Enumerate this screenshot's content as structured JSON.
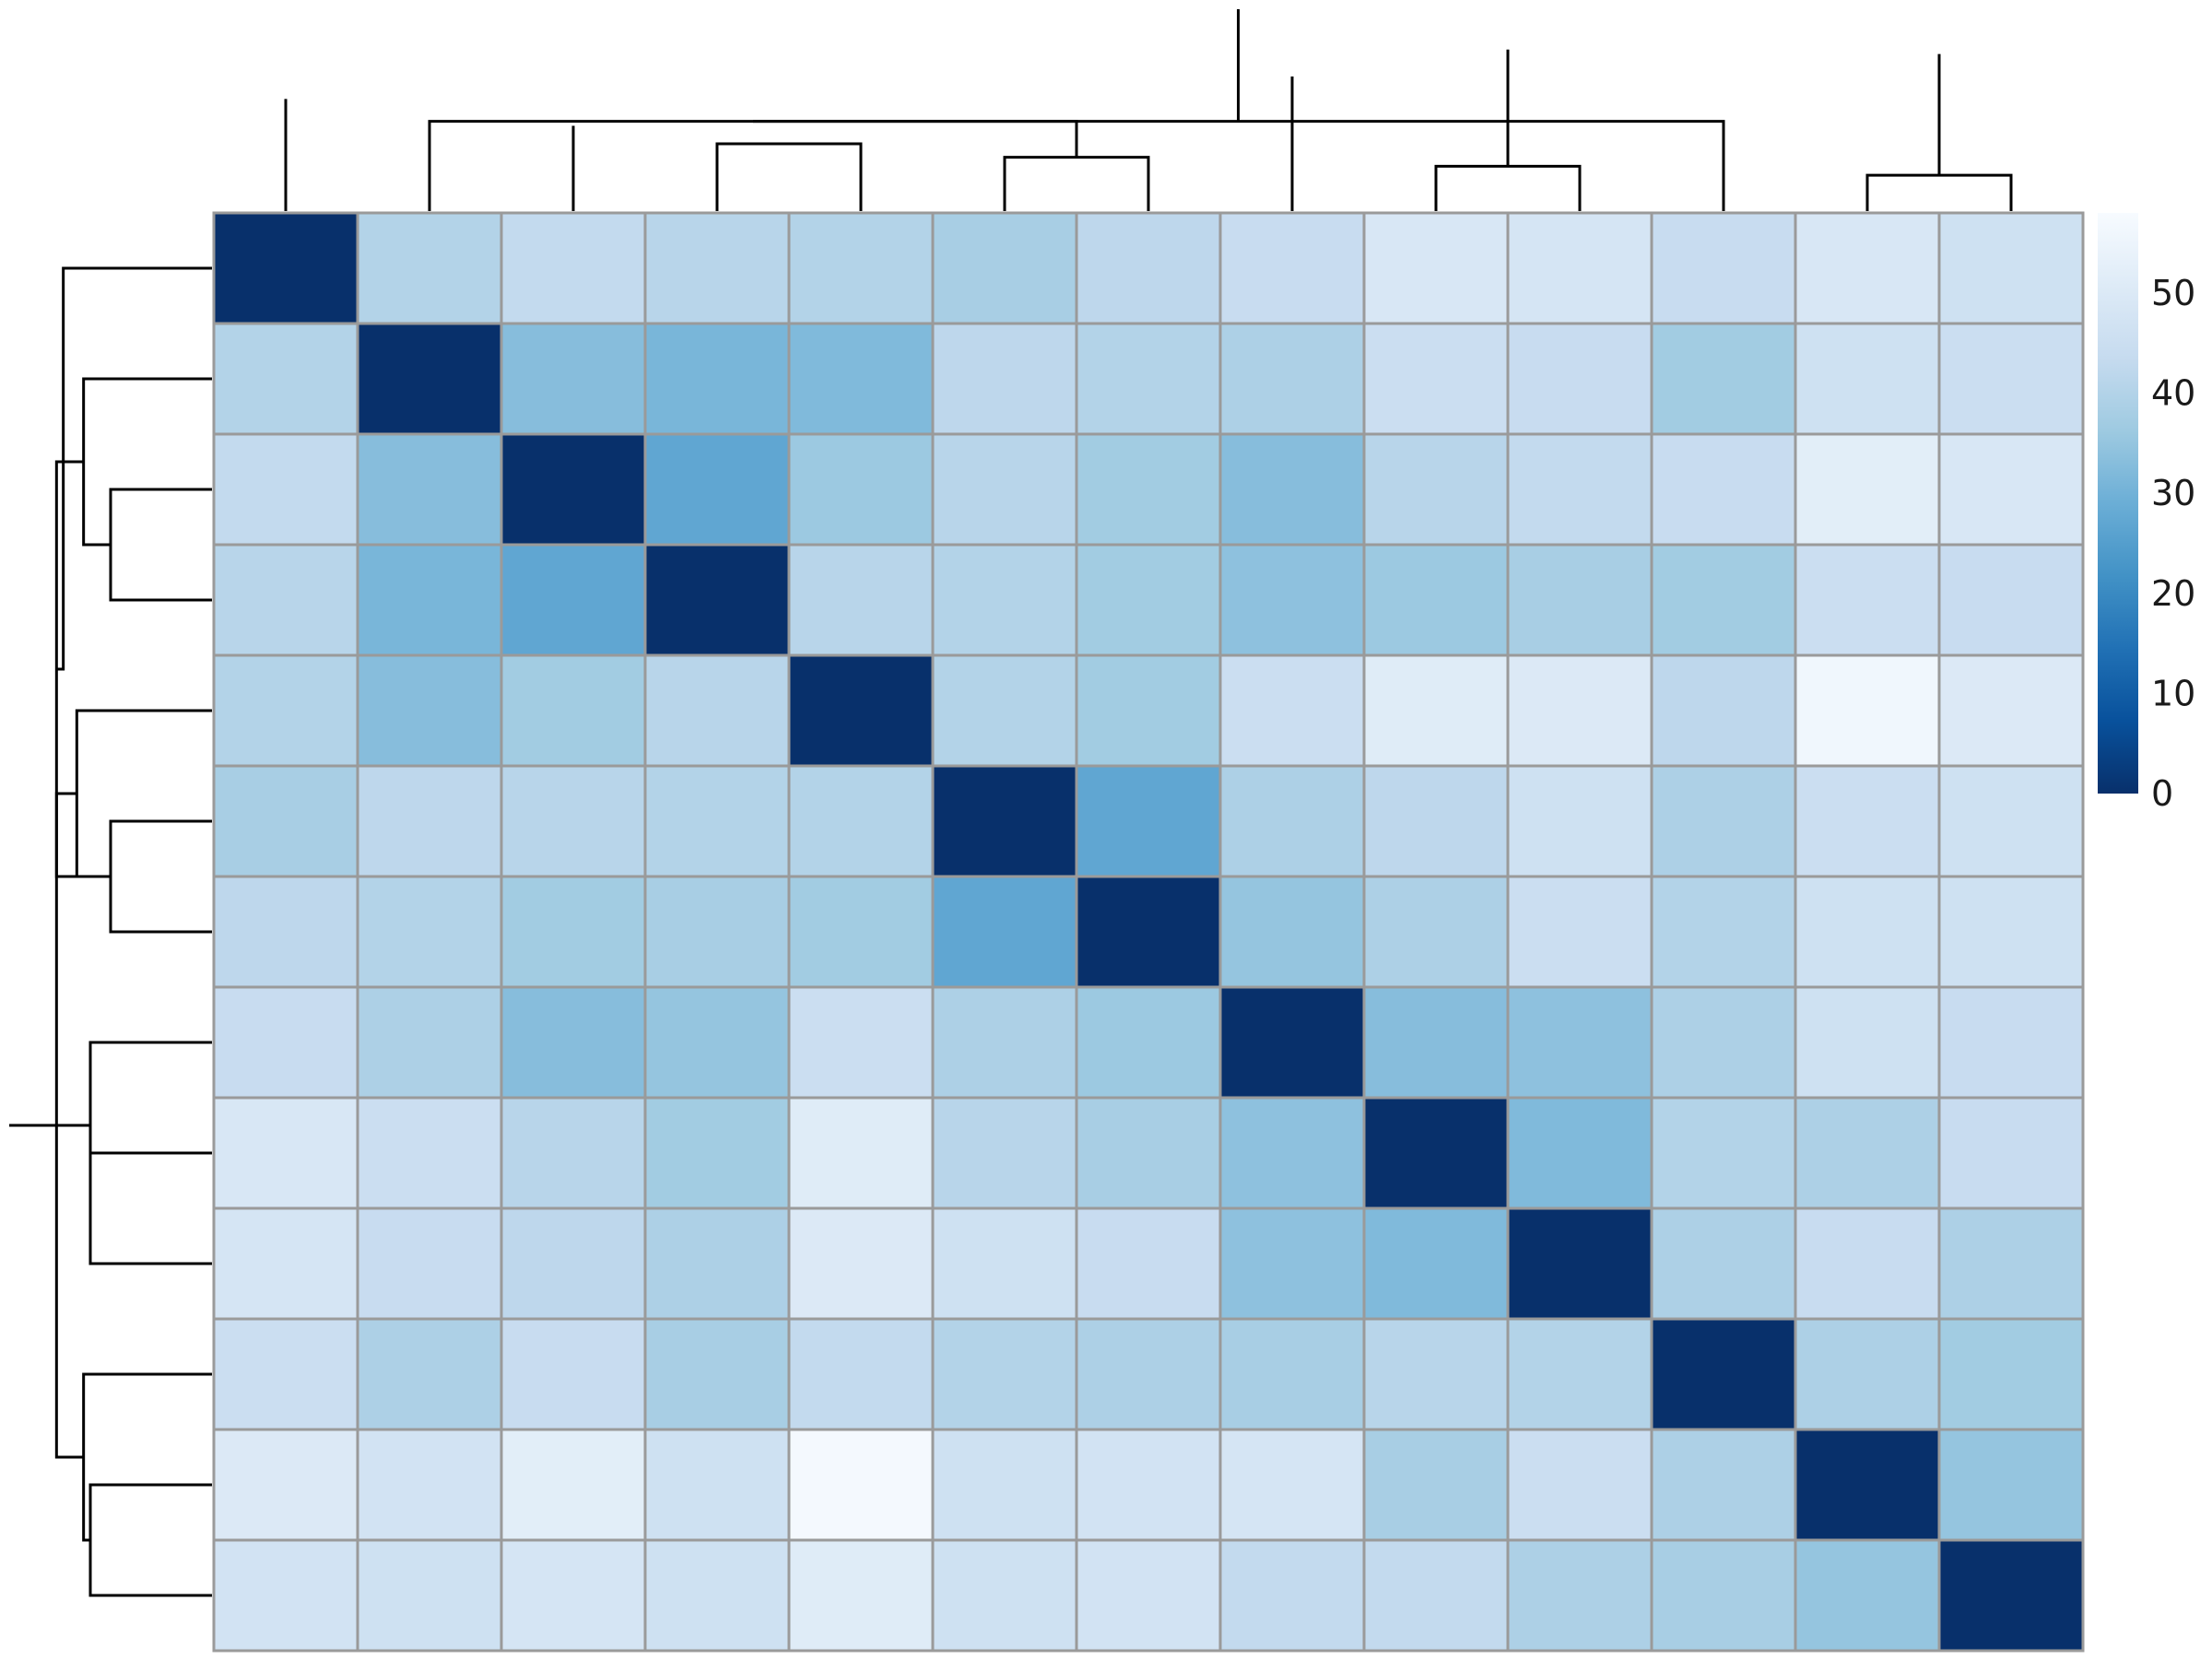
{
  "chart_data": {
    "type": "heatmap",
    "title": "",
    "xlabel": "",
    "ylabel": "",
    "n": 13,
    "matrix": [
      [
        0,
        40,
        43,
        41,
        40,
        38,
        42,
        44,
        49,
        48,
        44,
        49,
        46
      ],
      [
        40,
        0,
        33,
        31,
        32,
        42,
        40,
        39,
        45,
        44,
        37,
        46,
        45
      ],
      [
        43,
        33,
        0,
        27,
        36,
        41,
        37,
        33,
        41,
        43,
        44,
        52,
        49
      ],
      [
        41,
        31,
        27,
        0,
        41,
        40,
        37,
        34,
        36,
        38,
        37,
        45,
        44
      ],
      [
        40,
        33,
        37,
        41,
        0,
        40,
        37,
        45,
        51,
        50,
        42,
        56,
        50
      ],
      [
        38,
        42,
        41,
        40,
        40,
        0,
        27,
        39,
        42,
        46,
        39,
        45,
        46
      ],
      [
        42,
        40,
        37,
        38,
        37,
        27,
        0,
        35,
        39,
        45,
        40,
        46,
        46
      ],
      [
        44,
        39,
        33,
        35,
        45,
        39,
        36,
        0,
        33,
        34,
        39,
        46,
        44
      ],
      [
        49,
        45,
        41,
        37,
        51,
        41,
        38,
        34,
        0,
        32,
        40,
        39,
        44
      ],
      [
        48,
        44,
        42,
        39,
        50,
        46,
        44,
        34,
        32,
        0,
        39,
        44,
        39
      ],
      [
        45,
        39,
        44,
        38,
        43,
        40,
        39,
        38,
        41,
        40,
        0,
        39,
        37
      ],
      [
        50,
        47,
        52,
        46,
        57,
        46,
        47,
        48,
        38,
        45,
        39,
        0,
        35
      ],
      [
        47,
        46,
        48,
        46,
        51,
        46,
        47,
        43,
        43,
        39,
        38,
        35,
        0
      ]
    ],
    "colormap": {
      "name": "Blues_r",
      "stops": [
        "#08306b",
        "#08519c",
        "#2171b5",
        "#4292c6",
        "#6baed6",
        "#9ecae1",
        "#c6dbef",
        "#deebf7",
        "#f7fbff"
      ],
      "vmin": 0,
      "vmax": 58
    },
    "colorbar": {
      "ticks": [
        "0",
        "10",
        "20",
        "30",
        "40",
        "50"
      ],
      "tick_values": [
        0,
        10,
        20,
        30,
        40,
        50
      ]
    },
    "grid": true,
    "col_dendrogram": [
      [
        11,
        12,
        8
      ],
      [
        8,
        9,
        10
      ],
      [
        3,
        4,
        15
      ],
      [
        2,
        16,
        19
      ],
      [
        5,
        6,
        12
      ],
      [
        1,
        17,
        20
      ],
      [
        10,
        18,
        20
      ],
      [
        0,
        21,
        25
      ],
      [
        7,
        22,
        30
      ],
      [
        13,
        23,
        35
      ],
      [
        14,
        24,
        36
      ],
      [
        19,
        25,
        45
      ]
    ],
    "row_dendrogram": [
      [
        2,
        3,
        15
      ],
      [
        5,
        6,
        15
      ],
      [
        8,
        9,
        18
      ],
      [
        11,
        12,
        18
      ],
      [
        1,
        13,
        19
      ],
      [
        4,
        14,
        20
      ],
      [
        10,
        16,
        19
      ],
      [
        7,
        15,
        18
      ],
      [
        17,
        14,
        23
      ],
      [
        19,
        18,
        23
      ],
      [
        0,
        21,
        22
      ],
      [
        20,
        22,
        30
      ]
    ]
  }
}
